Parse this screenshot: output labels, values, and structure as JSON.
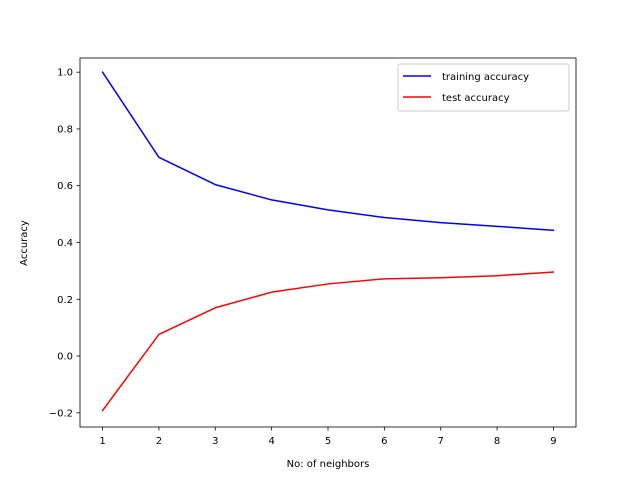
{
  "chart_data": {
    "type": "line",
    "title": "",
    "xlabel": "No: of neighbors",
    "ylabel": "Accuracy",
    "x": [
      1,
      2,
      3,
      4,
      5,
      6,
      7,
      8,
      9
    ],
    "xlim": [
      0.6,
      9.4
    ],
    "ylim": [
      -0.25,
      1.05
    ],
    "xticks": [
      1,
      2,
      3,
      4,
      5,
      6,
      7,
      8,
      9
    ],
    "yticks": [
      -0.2,
      0.0,
      0.2,
      0.4,
      0.6,
      0.8,
      1.0
    ],
    "ytick_labels": [
      "−0.2",
      "0.0",
      "0.2",
      "0.4",
      "0.6",
      "0.8",
      "1.0"
    ],
    "grid": false,
    "legend_position": "top-right",
    "series": [
      {
        "name": "training accuracy",
        "color": "#0000ff",
        "values": [
          1.0,
          0.7,
          0.604,
          0.55,
          0.515,
          0.488,
          0.47,
          0.457,
          0.443
        ]
      },
      {
        "name": "test accuracy",
        "color": "#ff0000",
        "values": [
          -0.192,
          0.076,
          0.17,
          0.225,
          0.254,
          0.272,
          0.276,
          0.283,
          0.296
        ]
      }
    ]
  }
}
